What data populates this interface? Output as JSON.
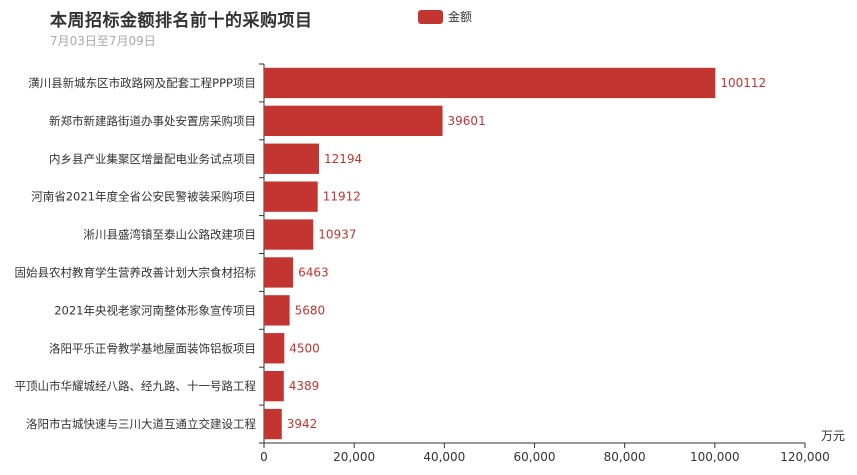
{
  "chart_data": {
    "type": "bar",
    "orientation": "horizontal",
    "title": "本周招标金额排名前十的采购项目",
    "subtitle": "7月03日至7月09日",
    "legend": [
      "金额"
    ],
    "legend_placement": "top-center",
    "xlabel": "万元",
    "xlim": [
      0,
      120000
    ],
    "x_ticks": [
      "0",
      "20,000",
      "40,000",
      "60,000",
      "80,000",
      "100,000",
      "120,000"
    ],
    "grid": false,
    "bar_color": "#c23531",
    "categories": [
      "潢川县新城东区市政路网及配套工程PPP项目",
      "新郑市新建路街道办事处安置房采购项目",
      "内乡县产业集聚区增量配电业务试点项目",
      "河南省2021年度全省公安民警被装采购项目",
      "淅川县盛湾镇至泰山公路改建项目",
      "固始县农村教育学生营养改善计划大宗食材招标",
      "2021年央视老家河南整体形象宣传项目",
      "洛阳平乐正骨教学基地屋面装饰铝板项目",
      "平顶山市华耀城经八路、经九路、十一号路工程",
      "洛阳市古城快速与三川大道互通立交建设工程"
    ],
    "series": [
      {
        "name": "金额",
        "values": [
          100112,
          39601,
          12194,
          11912,
          10937,
          6463,
          5680,
          4500,
          4389,
          3942
        ]
      }
    ]
  }
}
